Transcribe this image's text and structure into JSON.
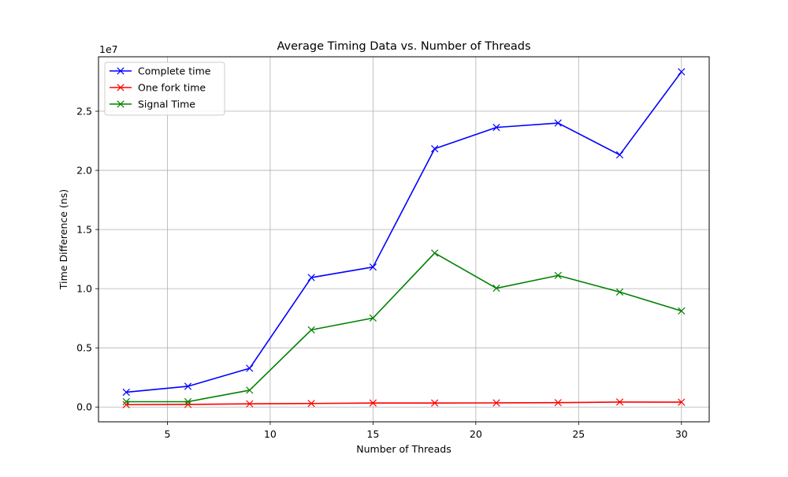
{
  "chart_data": {
    "type": "line",
    "title": "Average Timing Data vs. Number of Threads",
    "xlabel": "Number of Threads",
    "ylabel": "Time Difference (ns)",
    "y_offset_label": "1e7",
    "xlim": [
      1.65,
      31.35
    ],
    "ylim": [
      -1250000,
      29600000
    ],
    "x_ticks": [
      5,
      10,
      15,
      20,
      25,
      30
    ],
    "x_tick_labels": [
      "5",
      "10",
      "15",
      "20",
      "25",
      "30"
    ],
    "y_ticks": [
      0,
      5000000,
      10000000,
      15000000,
      20000000,
      25000000
    ],
    "y_tick_labels": [
      "0.0",
      "0.5",
      "1.0",
      "1.5",
      "2.0",
      "2.5"
    ],
    "grid": true,
    "legend_position": "upper-left",
    "marker": "x",
    "x": [
      3,
      6,
      9,
      12,
      15,
      18,
      21,
      24,
      27,
      30
    ],
    "series": [
      {
        "name": "Complete time",
        "color": "#0000ff",
        "values": [
          1250000,
          1750000,
          3270000,
          10940000,
          11830000,
          21830000,
          23630000,
          24000000,
          21310000,
          28330000
        ]
      },
      {
        "name": "One fork time",
        "color": "#ff0000",
        "values": [
          200000,
          220000,
          270000,
          300000,
          340000,
          340000,
          350000,
          370000,
          420000,
          410000
        ]
      },
      {
        "name": "Signal Time",
        "color": "#008000",
        "values": [
          450000,
          450000,
          1420000,
          6520000,
          7520000,
          13010000,
          10040000,
          11120000,
          9720000,
          8120000
        ]
      }
    ]
  }
}
